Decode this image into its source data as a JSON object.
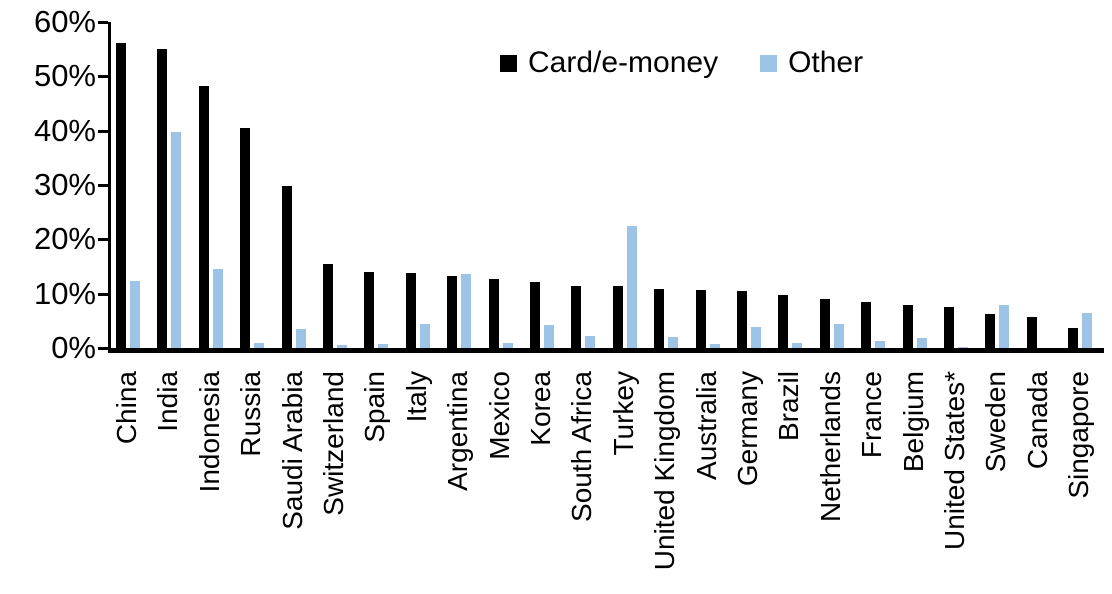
{
  "chart_data": {
    "type": "bar",
    "title": "",
    "xlabel": "",
    "ylabel": "",
    "ylim": [
      0,
      60
    ],
    "y_ticks": [
      "0%",
      "10%",
      "20%",
      "30%",
      "40%",
      "50%",
      "60%"
    ],
    "grid": false,
    "legend_position": "top-center",
    "categories": [
      "China",
      "India",
      "Indonesia",
      "Russia",
      "Saudi Arabia",
      "Switzerland",
      "Spain",
      "Italy",
      "Argentina",
      "Mexico",
      "Korea",
      "South Africa",
      "Turkey",
      "United Kingdom",
      "Australia",
      "Germany",
      "Brazil",
      "Netherlands",
      "France",
      "Belgium",
      "United States*",
      "Sweden",
      "Canada",
      "Singapore"
    ],
    "series": [
      {
        "name": "Card/e-money",
        "color": "#000000",
        "values": [
          56.2,
          55.0,
          48.3,
          40.5,
          29.8,
          15.4,
          14.0,
          13.8,
          13.2,
          12.7,
          12.1,
          11.5,
          11.4,
          10.9,
          10.6,
          10.4,
          9.7,
          9.0,
          8.4,
          7.9,
          7.6,
          6.3,
          5.7,
          3.6
        ]
      },
      {
        "name": "Other",
        "color": "#9DC3E6",
        "values": [
          12.3,
          39.7,
          14.5,
          0.9,
          3.5,
          0.5,
          0.8,
          4.4,
          13.7,
          1.0,
          4.3,
          2.2,
          22.5,
          2.1,
          0.7,
          3.8,
          0.9,
          4.5,
          1.3,
          1.8,
          0.2,
          7.9,
          0.0,
          6.4
        ]
      }
    ]
  },
  "legend": {
    "card_label": "Card/e-money",
    "other_label": "Other"
  },
  "colors": {
    "card": "#000000",
    "other": "#9DC3E6",
    "background": "#FFFFFF",
    "axis": "#000000"
  }
}
